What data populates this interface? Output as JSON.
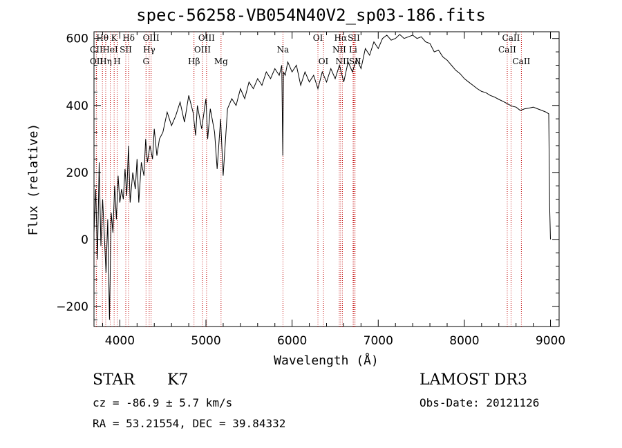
{
  "chart_data": {
    "type": "line",
    "title": "spec-56258-VB054N40V2_sp03-186.fits",
    "xlabel": "Wavelength (Å)",
    "ylabel": "Flux (relative)",
    "xlim": [
      3700,
      9100
    ],
    "ylim": [
      -260,
      620
    ],
    "xticks": [
      4000,
      5000,
      6000,
      7000,
      8000,
      9000
    ],
    "yticks": [
      -200,
      0,
      200,
      400,
      600
    ],
    "grid": false,
    "line_color": "#000000",
    "marker_color": "#c00000",
    "series": [
      {
        "name": "flux",
        "points": [
          [
            3700,
            20
          ],
          [
            3720,
            150
          ],
          [
            3740,
            -60
          ],
          [
            3760,
            230
          ],
          [
            3780,
            -20
          ],
          [
            3800,
            120
          ],
          [
            3820,
            10
          ],
          [
            3840,
            -100
          ],
          [
            3860,
            60
          ],
          [
            3880,
            -240
          ],
          [
            3900,
            80
          ],
          [
            3920,
            20
          ],
          [
            3940,
            160
          ],
          [
            3960,
            60
          ],
          [
            3980,
            190
          ],
          [
            4000,
            110
          ],
          [
            4020,
            150
          ],
          [
            4040,
            120
          ],
          [
            4060,
            210
          ],
          [
            4080,
            130
          ],
          [
            4100,
            280
          ],
          [
            4120,
            110
          ],
          [
            4150,
            200
          ],
          [
            4180,
            150
          ],
          [
            4200,
            240
          ],
          [
            4220,
            110
          ],
          [
            4250,
            230
          ],
          [
            4280,
            190
          ],
          [
            4300,
            300
          ],
          [
            4320,
            230
          ],
          [
            4350,
            280
          ],
          [
            4380,
            240
          ],
          [
            4400,
            330
          ],
          [
            4430,
            250
          ],
          [
            4460,
            300
          ],
          [
            4500,
            320
          ],
          [
            4550,
            380
          ],
          [
            4600,
            340
          ],
          [
            4650,
            370
          ],
          [
            4700,
            410
          ],
          [
            4750,
            350
          ],
          [
            4800,
            430
          ],
          [
            4850,
            380
          ],
          [
            4880,
            310
          ],
          [
            4900,
            400
          ],
          [
            4950,
            330
          ],
          [
            5000,
            420
          ],
          [
            5020,
            300
          ],
          [
            5050,
            390
          ],
          [
            5100,
            320
          ],
          [
            5130,
            210
          ],
          [
            5170,
            360
          ],
          [
            5200,
            190
          ],
          [
            5250,
            390
          ],
          [
            5300,
            420
          ],
          [
            5350,
            400
          ],
          [
            5400,
            450
          ],
          [
            5450,
            420
          ],
          [
            5500,
            470
          ],
          [
            5550,
            450
          ],
          [
            5600,
            480
          ],
          [
            5650,
            460
          ],
          [
            5700,
            500
          ],
          [
            5750,
            480
          ],
          [
            5800,
            510
          ],
          [
            5850,
            490
          ],
          [
            5880,
            520
          ],
          [
            5892,
            250
          ],
          [
            5900,
            500
          ],
          [
            5920,
            490
          ],
          [
            5950,
            530
          ],
          [
            6000,
            500
          ],
          [
            6050,
            520
          ],
          [
            6100,
            460
          ],
          [
            6150,
            500
          ],
          [
            6200,
            470
          ],
          [
            6250,
            490
          ],
          [
            6300,
            450
          ],
          [
            6350,
            500
          ],
          [
            6400,
            470
          ],
          [
            6450,
            510
          ],
          [
            6500,
            480
          ],
          [
            6550,
            520
          ],
          [
            6600,
            470
          ],
          [
            6650,
            530
          ],
          [
            6700,
            500
          ],
          [
            6750,
            540
          ],
          [
            6800,
            510
          ],
          [
            6850,
            570
          ],
          [
            6900,
            550
          ],
          [
            6950,
            590
          ],
          [
            7000,
            570
          ],
          [
            7050,
            600
          ],
          [
            7100,
            610
          ],
          [
            7150,
            595
          ],
          [
            7200,
            600
          ],
          [
            7250,
            612
          ],
          [
            7300,
            600
          ],
          [
            7350,
            605
          ],
          [
            7400,
            610
          ],
          [
            7450,
            600
          ],
          [
            7500,
            605
          ],
          [
            7550,
            590
          ],
          [
            7600,
            585
          ],
          [
            7650,
            560
          ],
          [
            7700,
            565
          ],
          [
            7750,
            545
          ],
          [
            7800,
            535
          ],
          [
            7850,
            520
          ],
          [
            7900,
            505
          ],
          [
            7950,
            495
          ],
          [
            8000,
            480
          ],
          [
            8050,
            470
          ],
          [
            8100,
            460
          ],
          [
            8150,
            450
          ],
          [
            8200,
            442
          ],
          [
            8250,
            438
          ],
          [
            8300,
            430
          ],
          [
            8350,
            425
          ],
          [
            8400,
            418
          ],
          [
            8450,
            412
          ],
          [
            8500,
            405
          ],
          [
            8550,
            398
          ],
          [
            8600,
            395
          ],
          [
            8650,
            385
          ],
          [
            8700,
            390
          ],
          [
            8750,
            392
          ],
          [
            8800,
            395
          ],
          [
            8850,
            390
          ],
          [
            8900,
            385
          ],
          [
            8950,
            380
          ],
          [
            8980,
            375
          ],
          [
            8990,
            100
          ],
          [
            9000,
            0
          ]
        ]
      }
    ],
    "line_markers": [
      {
        "label": "Hθ",
        "wavelength": 3798,
        "row": 0
      },
      {
        "label": "CII",
        "wavelength": 3727,
        "row": 1
      },
      {
        "label": "OII",
        "wavelength": 3729,
        "row": 2
      },
      {
        "label": "Hη",
        "wavelength": 3836,
        "row": 2
      },
      {
        "label": "K",
        "wavelength": 3934,
        "row": 0
      },
      {
        "label": "HeI",
        "wavelength": 3889,
        "row": 1
      },
      {
        "label": "H",
        "wavelength": 3969,
        "row": 2
      },
      {
        "label": "SII",
        "wavelength": 4069,
        "row": 1
      },
      {
        "label": "Hδ",
        "wavelength": 4102,
        "row": 0
      },
      {
        "label": "OIII",
        "wavelength": 4363,
        "row": 0
      },
      {
        "label": "Hγ",
        "wavelength": 4341,
        "row": 1
      },
      {
        "label": "G",
        "wavelength": 4304,
        "row": 2
      },
      {
        "label": "Hβ",
        "wavelength": 4861,
        "row": 2
      },
      {
        "label": "OIII",
        "wavelength": 4959,
        "row": 1
      },
      {
        "label": "OIII",
        "wavelength": 5007,
        "row": 0
      },
      {
        "label": "Mg",
        "wavelength": 5175,
        "row": 2
      },
      {
        "label": "Na",
        "wavelength": 5894,
        "row": 1
      },
      {
        "label": "OI",
        "wavelength": 6300,
        "row": 0
      },
      {
        "label": "OI",
        "wavelength": 6364,
        "row": 2
      },
      {
        "label": "Hα",
        "wavelength": 6563,
        "row": 0
      },
      {
        "label": "NII",
        "wavelength": 6548,
        "row": 1
      },
      {
        "label": "NII",
        "wavelength": 6584,
        "row": 2
      },
      {
        "label": "SII",
        "wavelength": 6717,
        "row": 0
      },
      {
        "label": "Li",
        "wavelength": 6708,
        "row": 1
      },
      {
        "label": "SII",
        "wavelength": 6731,
        "row": 2
      },
      {
        "label": "CaII",
        "wavelength": 8542,
        "row": 0
      },
      {
        "label": "CaII",
        "wavelength": 8498,
        "row": 1
      },
      {
        "label": "CaII",
        "wavelength": 8662,
        "row": 2
      }
    ]
  },
  "info": {
    "object_class": "STAR",
    "subclass": "K7",
    "survey": "LAMOST DR3",
    "cz": "cz = -86.9 ± 5.7 km/s",
    "obs_date": "Obs-Date: 20121126",
    "radec": "RA =  53.21554, DEC =  39.84332"
  }
}
